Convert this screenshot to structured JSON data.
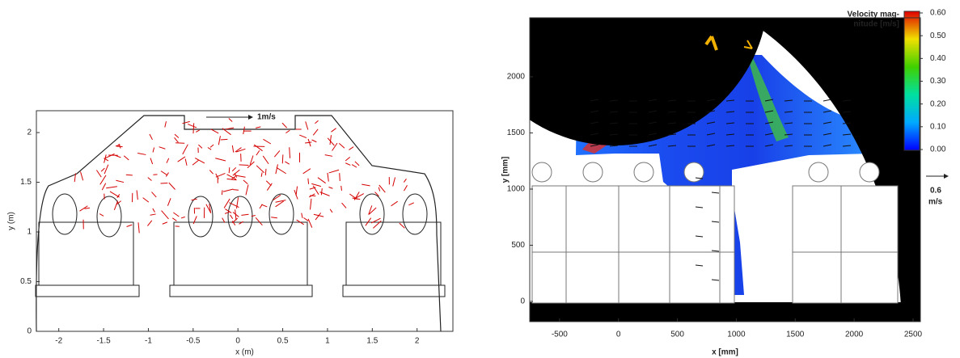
{
  "chart_data": [
    {
      "type": "vector",
      "xlabel": "x (m)",
      "ylabel": "y (m)",
      "annotation": "1m/s",
      "xlim": [
        -2.25,
        2.4
      ],
      "ylim": [
        0,
        2.22
      ],
      "xticks": [
        -2,
        -1.5,
        -1,
        -0.5,
        0,
        0.5,
        1,
        1.5,
        2
      ],
      "yticks": [
        0,
        0.5,
        1,
        1.5,
        2
      ],
      "color": "#d40000"
    },
    {
      "type": "vector-field",
      "xlabel": "x [mm]",
      "ylabel": "y [mm]",
      "annotation": [
        "0.6",
        "m/s"
      ],
      "xlim": [
        -753,
        2562
      ],
      "ylim": [
        -180,
        2525
      ],
      "xticks": [
        -500,
        0,
        500,
        1000,
        1500,
        2000,
        2500
      ],
      "yticks": [
        0,
        500,
        1000,
        1500,
        2000
      ],
      "colorbar": {
        "title": [
          "Velocity mag-",
          "nitude [m/s]"
        ],
        "lim": [
          0,
          0.6
        ],
        "ticks": [
          {
            "value": 0,
            "label": "0.00"
          },
          {
            "value": 0.1,
            "label": "0.10"
          },
          {
            "value": 0.2,
            "label": "0.20"
          },
          {
            "value": 0.3,
            "label": "0.30"
          },
          {
            "value": 0.4,
            "label": "0.40"
          },
          {
            "value": 0.5,
            "label": "0.50"
          },
          {
            "value": 0.6,
            "label": "0.60"
          }
        ]
      }
    }
  ]
}
